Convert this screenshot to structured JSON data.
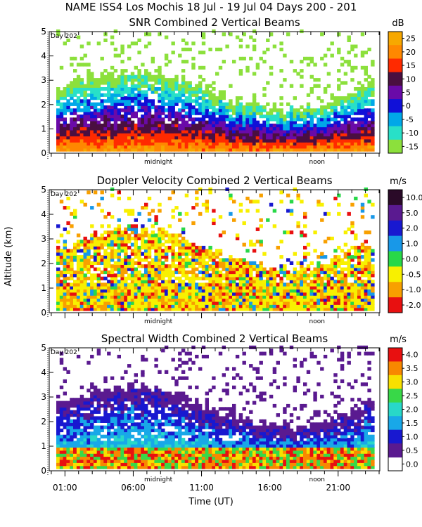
{
  "page_title": "NAME ISS4 Los Mochis  18 Jul - 19 Jul 04 Days 200 - 201",
  "shared": {
    "ylabel": "Altitude (km)",
    "xlabel": "Time (UT)",
    "day_marker": "Day 202",
    "midnight_label": "midnight",
    "noon_label": "noon",
    "yticks": [
      "0",
      "1",
      "2",
      "3",
      "4",
      "5"
    ]
  },
  "chart_data": [
    {
      "type": "heatmap",
      "title": "SNR Combined 2 Vertical Beams",
      "units": "dB",
      "ylim": [
        0,
        5
      ],
      "colorbar_labels": [
        "25",
        "20",
        "15",
        "10",
        "5",
        "0",
        "-5",
        "-10",
        "-15"
      ],
      "colorbar_colors": [
        "#f7a800",
        "#ff8800",
        "#ff2a00",
        "#4a0f40",
        "#6a0aa8",
        "#1010d8",
        "#00a8e8",
        "#28e0c8",
        "#8ce03c"
      ],
      "xtick_labels": [],
      "midnight_label_shown": true,
      "noon_label_shown": true,
      "day_marker_shown": true
    },
    {
      "type": "heatmap",
      "title": "Doppler Velocity Combined 2 Vertical Beams",
      "units": "m/s",
      "ylim": [
        0,
        5
      ],
      "colorbar_labels": [
        "10.0",
        "5.0",
        "2.0",
        "1.0",
        "0.0",
        "-0.5",
        "-1.0",
        "-2.0"
      ],
      "colorbar_colors": [
        "#2a0a28",
        "#5a1a90",
        "#1818d0",
        "#1898e8",
        "#28d848",
        "#f8f000",
        "#f8a000",
        "#e81010"
      ],
      "xtick_labels": [],
      "midnight_label_shown": true,
      "noon_label_shown": true,
      "day_marker_shown": true
    },
    {
      "type": "heatmap",
      "title": "Spectral Width Combined 2 Vertical Beams",
      "units": "m/s",
      "ylim": [
        0,
        5
      ],
      "colorbar_labels": [
        "4.0",
        "3.5",
        "3.0",
        "2.5",
        "2.0",
        "1.5",
        "1.0",
        "0.5",
        "0.0"
      ],
      "colorbar_colors": [
        "#e81010",
        "#f88800",
        "#f8e000",
        "#38d848",
        "#28d8c8",
        "#18a8e8",
        "#1818d0",
        "#5a1a90"
      ],
      "xtick_labels": [
        "01:00",
        "06:00",
        "11:00",
        "16:00",
        "21:00"
      ],
      "midnight_label_shown": true,
      "noon_label_shown": true,
      "day_marker_shown": true
    }
  ]
}
